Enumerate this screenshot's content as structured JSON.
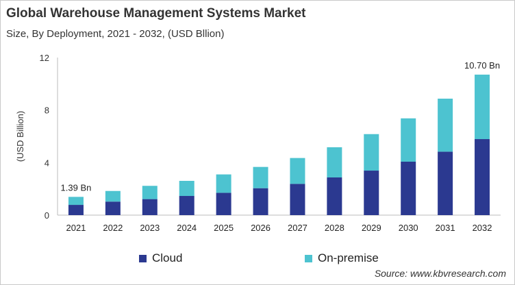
{
  "chart_data": {
    "type": "bar",
    "stacked": true,
    "title": "Global Warehouse Management Systems Market",
    "subtitle": "Size, By Deployment, 2021 - 2032, (USD Bllion)",
    "xlabel": "",
    "ylabel": "(USD Billion)",
    "ylim": [
      0,
      12
    ],
    "yticks": [
      0,
      4,
      8,
      12
    ],
    "grid": false,
    "legend": "bottom",
    "categories": [
      "2021",
      "2022",
      "2023",
      "2024",
      "2025",
      "2026",
      "2027",
      "2028",
      "2029",
      "2030",
      "2031",
      "2032"
    ],
    "series": [
      {
        "name": "Cloud",
        "color": "#2b3990",
        "values": [
          0.78,
          1.03,
          1.22,
          1.46,
          1.7,
          2.05,
          2.38,
          2.87,
          3.39,
          4.07,
          4.83,
          5.79
        ]
      },
      {
        "name": "On-premise",
        "color": "#4dc3d0",
        "values": [
          0.61,
          0.81,
          1.01,
          1.15,
          1.4,
          1.62,
          1.97,
          2.3,
          2.78,
          3.3,
          4.04,
          4.91
        ]
      }
    ],
    "annotations": [
      {
        "category": "2021",
        "text": "1.39 Bn"
      },
      {
        "category": "2032",
        "text": "10.70 Bn"
      }
    ]
  },
  "source": "Source: www.kbvresearch.com"
}
